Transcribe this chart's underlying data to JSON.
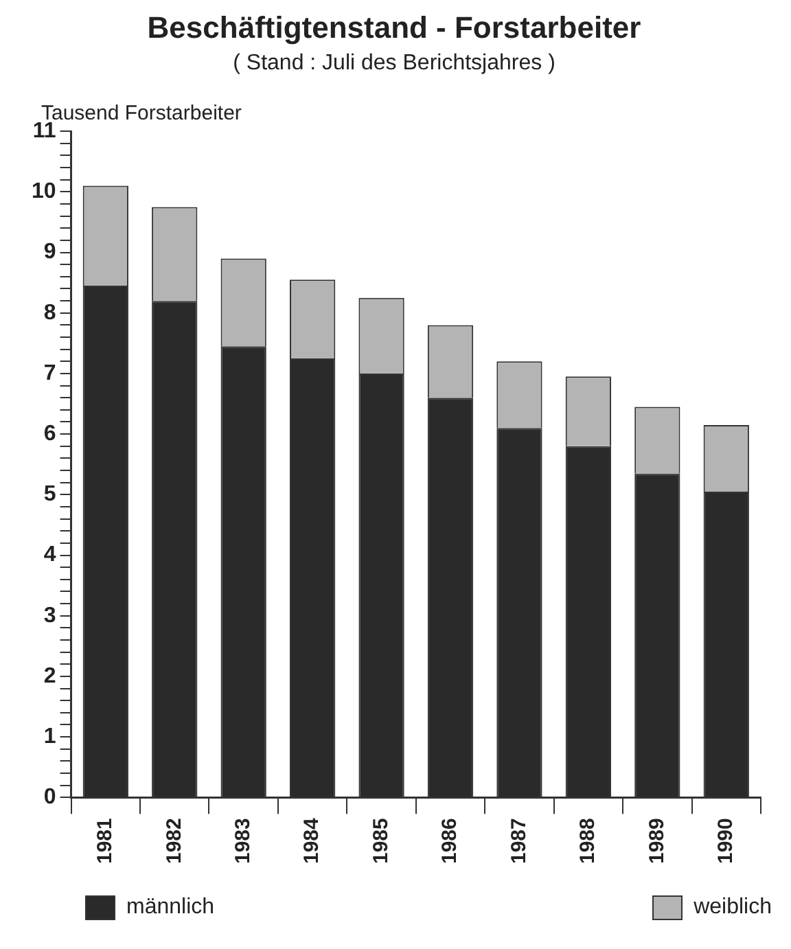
{
  "chart_data": {
    "type": "bar",
    "title": "Beschäftigtenstand - Forstarbeiter",
    "subtitle": "( Stand : Juli des Berichtsjahres )",
    "ylabel": "Tausend Forstarbeiter",
    "categories": [
      "1981",
      "1982",
      "1983",
      "1984",
      "1985",
      "1986",
      "1987",
      "1988",
      "1989",
      "1990"
    ],
    "stacked": true,
    "series": [
      {
        "name": "männlich",
        "color": "#2a2a2a",
        "values": [
          8.45,
          8.2,
          7.45,
          7.25,
          7.0,
          6.6,
          6.1,
          5.8,
          5.35,
          5.05
        ]
      },
      {
        "name": "weiblich",
        "color": "#b4b4b4",
        "values": [
          1.65,
          1.55,
          1.45,
          1.3,
          1.25,
          1.2,
          1.1,
          1.15,
          1.1,
          1.1
        ]
      }
    ],
    "ylim": [
      0,
      11
    ],
    "yticks": [
      0,
      {
        "value": 0.2,
        "label": null
      },
      {
        "value": 0.4,
        "label": null
      },
      {
        "value": 0.6,
        "label": null
      },
      {
        "value": 0.8,
        "label": null
      },
      1,
      {
        "value": 1.2,
        "label": null
      },
      {
        "value": 1.4,
        "label": null
      },
      {
        "value": 1.6,
        "label": null
      },
      {
        "value": 1.8,
        "label": null
      },
      2,
      {
        "value": 2.2,
        "label": null
      },
      {
        "value": 2.4,
        "label": null
      },
      {
        "value": 2.6,
        "label": null
      },
      {
        "value": 2.8,
        "label": null
      },
      3,
      {
        "value": 3.2,
        "label": null
      },
      {
        "value": 3.4,
        "label": null
      },
      {
        "value": 3.6,
        "label": null
      },
      {
        "value": 3.8,
        "label": null
      },
      4,
      {
        "value": 4.2,
        "label": null
      },
      {
        "value": 4.4,
        "label": null
      },
      {
        "value": 4.6,
        "label": null
      },
      {
        "value": 4.8,
        "label": null
      },
      5,
      {
        "value": 5.2,
        "label": null
      },
      {
        "value": 5.4,
        "label": null
      },
      {
        "value": 5.6,
        "label": null
      },
      {
        "value": 5.8,
        "label": null
      },
      6,
      {
        "value": 6.2,
        "label": null
      },
      {
        "value": 6.4,
        "label": null
      },
      {
        "value": 6.6,
        "label": null
      },
      {
        "value": 6.8,
        "label": null
      },
      7,
      {
        "value": 7.2,
        "label": null
      },
      {
        "value": 7.4,
        "label": null
      },
      {
        "value": 7.6,
        "label": null
      },
      {
        "value": 7.8,
        "label": null
      },
      8,
      {
        "value": 8.2,
        "label": null
      },
      {
        "value": 8.4,
        "label": null
      },
      {
        "value": 8.6,
        "label": null
      },
      {
        "value": 8.8,
        "label": null
      },
      9,
      {
        "value": 9.2,
        "label": null
      },
      {
        "value": 9.4,
        "label": null
      },
      {
        "value": 9.6,
        "label": null
      },
      {
        "value": 9.8,
        "label": null
      },
      10,
      {
        "value": 10.2,
        "label": null
      },
      {
        "value": 10.4,
        "label": null
      },
      {
        "value": 10.6,
        "label": null
      },
      {
        "value": 10.8,
        "label": null
      },
      11
    ],
    "grid": false,
    "legend": "bottom"
  }
}
